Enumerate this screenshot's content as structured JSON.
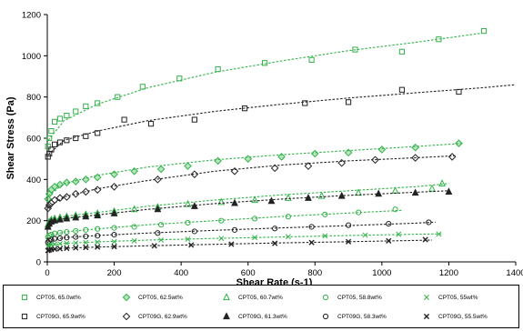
{
  "chart_data": {
    "type": "scatter",
    "title": "",
    "xlabel": "Shear Rate (s-1)",
    "ylabel": "Shear Stress (Pa)",
    "xlim": [
      0,
      1400
    ],
    "ylim": [
      0,
      1200
    ],
    "xticks": [
      0,
      200,
      400,
      600,
      800,
      1000,
      1200,
      1400
    ],
    "yticks": [
      0,
      200,
      400,
      600,
      800,
      1000,
      1200
    ],
    "grid": false,
    "legend_position": "bottom",
    "colors": {
      "green": "#33b24a",
      "black": "#222222"
    },
    "series": [
      {
        "name": "CPT05, 65.0wt%",
        "marker": "square",
        "color": "#33b24a",
        "x": [
          2,
          6,
          12,
          22,
          38,
          58,
          85,
          115,
          150,
          210,
          285,
          395,
          510,
          650,
          790,
          920,
          1060,
          1170,
          1305
        ],
        "y": [
          560,
          600,
          635,
          680,
          695,
          710,
          730,
          755,
          770,
          800,
          850,
          890,
          935,
          965,
          980,
          1030,
          1020,
          1080,
          1120
        ],
        "fit": [
          [
            3,
            590
          ],
          [
            50,
            685
          ],
          [
            150,
            765
          ],
          [
            300,
            845
          ],
          [
            500,
            920
          ],
          [
            700,
            975
          ],
          [
            900,
            1025
          ],
          [
            1100,
            1065
          ],
          [
            1300,
            1110
          ]
        ]
      },
      {
        "name": "CPT09G, 65.9wt%",
        "marker": "square-open",
        "color": "#222222",
        "x": [
          2,
          6,
          12,
          22,
          38,
          58,
          85,
          115,
          150,
          230,
          310,
          440,
          590,
          770,
          900,
          1060,
          1230
        ],
        "y": [
          510,
          525,
          545,
          570,
          580,
          590,
          600,
          610,
          625,
          690,
          670,
          690,
          745,
          770,
          775,
          835,
          825
        ],
        "fit": [
          [
            3,
            520
          ],
          [
            50,
            590
          ],
          [
            150,
            635
          ],
          [
            300,
            685
          ],
          [
            500,
            730
          ],
          [
            700,
            765
          ],
          [
            900,
            795
          ],
          [
            1100,
            820
          ],
          [
            1300,
            845
          ],
          [
            1400,
            860
          ]
        ]
      },
      {
        "name": "CPT05, 62.5wt%",
        "marker": "diamond",
        "color": "#33b24a",
        "x": [
          2,
          6,
          12,
          22,
          38,
          58,
          85,
          115,
          150,
          200,
          260,
          340,
          420,
          510,
          600,
          700,
          800,
          900,
          1000,
          1100,
          1230
        ],
        "y": [
          305,
          330,
          350,
          365,
          375,
          385,
          390,
          400,
          410,
          425,
          440,
          450,
          465,
          490,
          500,
          510,
          525,
          530,
          545,
          555,
          575
        ],
        "fit": [
          [
            3,
            320
          ],
          [
            50,
            380
          ],
          [
            150,
            420
          ],
          [
            300,
            460
          ],
          [
            500,
            495
          ],
          [
            700,
            520
          ],
          [
            900,
            540
          ],
          [
            1100,
            560
          ],
          [
            1240,
            575
          ]
        ]
      },
      {
        "name": "CPT09G, 62.9wt%",
        "marker": "diamond-open",
        "color": "#222222",
        "x": [
          2,
          6,
          12,
          22,
          38,
          58,
          85,
          115,
          150,
          200,
          330,
          440,
          560,
          680,
          780,
          880,
          980,
          1100,
          1210
        ],
        "y": [
          260,
          275,
          285,
          300,
          310,
          315,
          330,
          340,
          350,
          365,
          400,
          425,
          440,
          455,
          465,
          480,
          495,
          505,
          510
        ],
        "fit": [
          [
            3,
            265
          ],
          [
            50,
            315
          ],
          [
            150,
            355
          ],
          [
            300,
            395
          ],
          [
            500,
            440
          ],
          [
            700,
            470
          ],
          [
            900,
            490
          ],
          [
            1100,
            505
          ],
          [
            1220,
            515
          ]
        ]
      },
      {
        "name": "CPT05, 60.7wt%",
        "marker": "triangle",
        "color": "#33b24a",
        "x": [
          2,
          6,
          12,
          22,
          38,
          58,
          85,
          115,
          150,
          200,
          260,
          330,
          420,
          520,
          620,
          720,
          820,
          930,
          1040,
          1150,
          1180
        ],
        "y": [
          180,
          195,
          205,
          210,
          215,
          220,
          225,
          230,
          235,
          245,
          255,
          265,
          280,
          290,
          300,
          310,
          320,
          335,
          345,
          355,
          380
        ],
        "fit": [
          [
            3,
            190
          ],
          [
            50,
            220
          ],
          [
            150,
            240
          ],
          [
            300,
            270
          ],
          [
            500,
            300
          ],
          [
            700,
            325
          ],
          [
            900,
            345
          ],
          [
            1100,
            365
          ],
          [
            1200,
            380
          ]
        ]
      },
      {
        "name": "CPT09G, 61.3wt%",
        "marker": "triangle-solid",
        "color": "#222222",
        "x": [
          2,
          6,
          12,
          22,
          38,
          58,
          85,
          115,
          150,
          200,
          330,
          440,
          560,
          670,
          780,
          880,
          990,
          1100,
          1200
        ],
        "y": [
          170,
          185,
          195,
          200,
          205,
          210,
          215,
          220,
          225,
          235,
          255,
          270,
          285,
          295,
          310,
          320,
          330,
          335,
          340
        ],
        "fit": [
          [
            3,
            180
          ],
          [
            50,
            210
          ],
          [
            150,
            228
          ],
          [
            300,
            255
          ],
          [
            500,
            283
          ],
          [
            700,
            305
          ],
          [
            900,
            323
          ],
          [
            1100,
            338
          ],
          [
            1200,
            345
          ]
        ]
      },
      {
        "name": "CPT05, 58.8wt%",
        "marker": "circle",
        "color": "#33b24a",
        "x": [
          2,
          6,
          12,
          22,
          38,
          58,
          85,
          115,
          150,
          200,
          260,
          340,
          420,
          520,
          620,
          720,
          830,
          930,
          1040
        ],
        "y": [
          120,
          128,
          133,
          138,
          142,
          145,
          150,
          155,
          160,
          165,
          170,
          180,
          190,
          200,
          210,
          220,
          230,
          240,
          255
        ],
        "fit": [
          [
            3,
            125
          ],
          [
            50,
            145
          ],
          [
            150,
            160
          ],
          [
            300,
            180
          ],
          [
            500,
            200
          ],
          [
            700,
            220
          ],
          [
            900,
            237
          ],
          [
            1060,
            250
          ]
        ]
      },
      {
        "name": "CPT09G, 58.3wt%",
        "marker": "circle-open",
        "color": "#222222",
        "x": [
          2,
          6,
          12,
          22,
          38,
          58,
          85,
          115,
          150,
          200,
          330,
          440,
          560,
          680,
          790,
          900,
          1020,
          1140
        ],
        "y": [
          95,
          103,
          108,
          112,
          115,
          118,
          121,
          124,
          127,
          132,
          140,
          148,
          155,
          162,
          170,
          178,
          185,
          192
        ],
        "fit": [
          [
            3,
            100
          ],
          [
            50,
            118
          ],
          [
            150,
            128
          ],
          [
            300,
            140
          ],
          [
            500,
            153
          ],
          [
            700,
            165
          ],
          [
            900,
            176
          ],
          [
            1100,
            188
          ],
          [
            1160,
            193
          ]
        ]
      },
      {
        "name": "CPT05, 55wt%",
        "marker": "x",
        "color": "#33b24a",
        "x": [
          2,
          6,
          12,
          22,
          38,
          58,
          85,
          115,
          150,
          200,
          260,
          340,
          420,
          520,
          620,
          720,
          830,
          950,
          1050,
          1170
        ],
        "y": [
          75,
          80,
          83,
          86,
          88,
          90,
          92,
          94,
          96,
          98,
          102,
          106,
          110,
          114,
          118,
          122,
          126,
          130,
          134,
          135
        ],
        "fit": [
          [
            3,
            78
          ],
          [
            50,
            90
          ],
          [
            150,
            97
          ],
          [
            300,
            106
          ],
          [
            500,
            114
          ],
          [
            700,
            121
          ],
          [
            900,
            128
          ],
          [
            1100,
            134
          ],
          [
            1180,
            136
          ]
        ]
      },
      {
        "name": "CPT09G, 55.5wt%",
        "marker": "x-bold",
        "color": "#222222",
        "x": [
          2,
          6,
          12,
          22,
          38,
          58,
          85,
          115,
          150,
          200,
          320,
          430,
          550,
          680,
          790,
          900,
          1020,
          1130
        ],
        "y": [
          55,
          58,
          60,
          62,
          64,
          66,
          68,
          70,
          72,
          74,
          78,
          82,
          86,
          90,
          94,
          98,
          102,
          108
        ],
        "fit": [
          [
            3,
            57
          ],
          [
            50,
            66
          ],
          [
            150,
            72
          ],
          [
            300,
            78
          ],
          [
            500,
            85
          ],
          [
            700,
            92
          ],
          [
            900,
            98
          ],
          [
            1100,
            104
          ],
          [
            1150,
            106
          ]
        ]
      }
    ]
  }
}
